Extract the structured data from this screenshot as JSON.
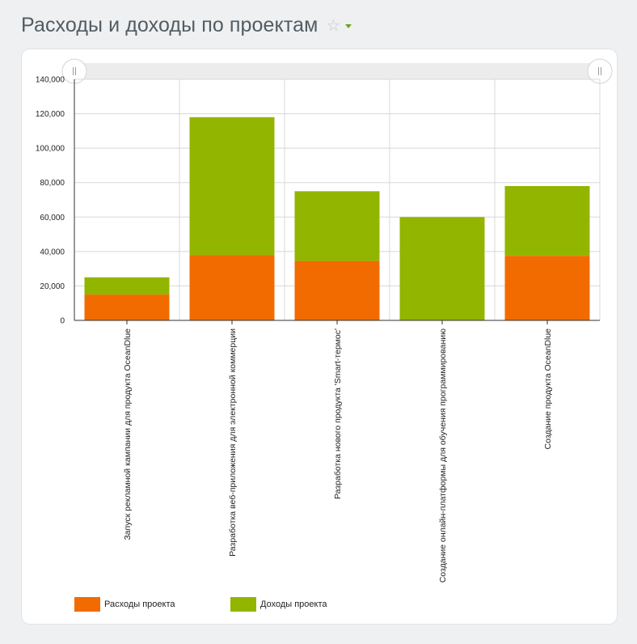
{
  "header": {
    "title": "Расходы и доходы по проектам",
    "favorite_icon": "star-outline-icon",
    "menu_icon": "chevron-down-icon"
  },
  "colors": {
    "expenses": "#f26b00",
    "income": "#92b500",
    "grid": "#d8d8d8",
    "slider_track": "#ececec"
  },
  "chart_data": {
    "type": "bar",
    "stacked": true,
    "categories": [
      "Запуск рекламной кампании для продукта OceanDlue",
      "Разработка веб-приложения для электронной коммерции",
      "Разработка нового продукта 'Smart-термос'",
      "Создание онлайн-платформы для обучения программированию",
      "Создание продукта OceanDlue"
    ],
    "series": [
      {
        "name": "Расходы проекта",
        "values": [
          15000,
          38000,
          34500,
          0,
          37500
        ]
      },
      {
        "name": "Доходы проекта",
        "values": [
          10000,
          80000,
          40500,
          60000,
          40500
        ]
      }
    ],
    "ylim": [
      0,
      140000
    ],
    "yticks": [
      0,
      20000,
      40000,
      60000,
      80000,
      100000,
      120000,
      140000
    ],
    "ytick_labels": [
      "0",
      "20,000",
      "40,000",
      "60,000",
      "80,000",
      "100,000",
      "120,000",
      "140,000"
    ],
    "grid": true,
    "legend_position": "bottom-left",
    "range_slider": true
  }
}
